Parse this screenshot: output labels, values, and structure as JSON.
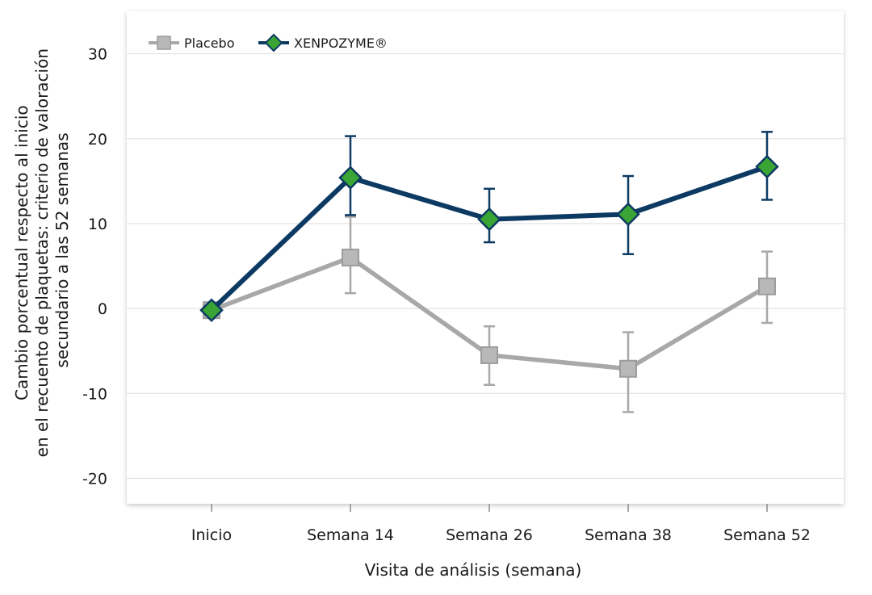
{
  "chart_data": {
    "type": "line",
    "categories": [
      "Inicio",
      "Semana 14",
      "Semana 26",
      "Semana 38",
      "Semana 52"
    ],
    "xlabel": "Visita de análisis (semana)",
    "ylabel": [
      "Cambio porcentual respecto al inicio",
      "en el recuento de plaquetas: criterio de valoración",
      "secundario a las 52 semanas"
    ],
    "ylim": [
      -23,
      35
    ],
    "yticks": [
      30,
      20,
      10,
      0,
      -10,
      -20
    ],
    "grid": "horizontal",
    "legend_position": "top-left",
    "series": [
      {
        "name": "Placebo",
        "marker": "square",
        "color": "#a8a8a8",
        "values": [
          -0.2,
          6,
          -5.5,
          -7.1,
          2.6
        ],
        "err_low": [
          -0.2,
          1.8,
          -9.0,
          -12.2,
          -1.7
        ],
        "err_high": [
          -0.2,
          10.8,
          -2.1,
          -2.8,
          6.7
        ]
      },
      {
        "name": "XENPOZYME®",
        "marker": "diamond",
        "color": "#0d3a63",
        "fill": "#3aa535",
        "values": [
          -0.2,
          15.4,
          10.5,
          11.1,
          16.7
        ],
        "err_low": [
          -0.2,
          11.0,
          7.8,
          6.4,
          12.8
        ],
        "err_high": [
          -0.2,
          20.3,
          14.1,
          15.6,
          20.8
        ]
      }
    ]
  }
}
